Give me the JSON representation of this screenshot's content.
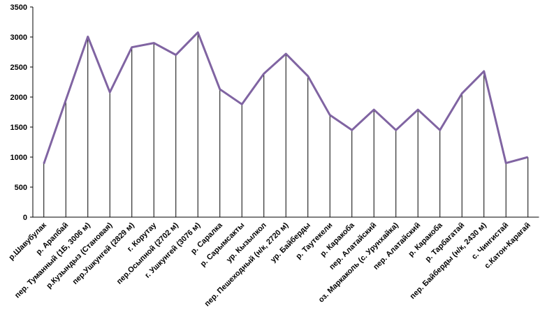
{
  "chart_data": {
    "type": "line",
    "categories": [
      "р.Шавубулак",
      "р. Арапбай",
      "пер. Туманный (1Б, 3006 м)",
      "р.Кузындыз (Становая)",
      "пер.Ушкунгей (2829 м)",
      "г. Корутау",
      "пер.Осыпной (2702 м)",
      "г. Ушкунгей (3076 м)",
      "р. Саралка",
      "р. Сарымсакты",
      "ур. Кызылкол",
      "пер. Пешеходный (н/к, 2720 м)",
      "ур. Байберды",
      "р. Таутекели",
      "р. Каракоба",
      "пер. Алатайский",
      "оз. Маркаколь (с. Урунхайка)",
      "пер. Алатайский",
      "р. Каракоба",
      "р. Тарбагатай",
      "пер. Байберды (н/к, 2430 м)",
      "с. Чингистай",
      "с.Катон-Карагай"
    ],
    "values": [
      890,
      1950,
      3006,
      2080,
      2829,
      2900,
      2702,
      3076,
      2130,
      1880,
      2390,
      2720,
      2350,
      1700,
      1450,
      1790,
      1450,
      1790,
      1450,
      2060,
      2430,
      900,
      1000
    ],
    "color": "#8064a2",
    "drop_lines": true,
    "ylim": [
      0,
      3500
    ],
    "yticks": [
      0,
      500,
      1000,
      1500,
      2000,
      2500,
      3000,
      3500
    ]
  }
}
